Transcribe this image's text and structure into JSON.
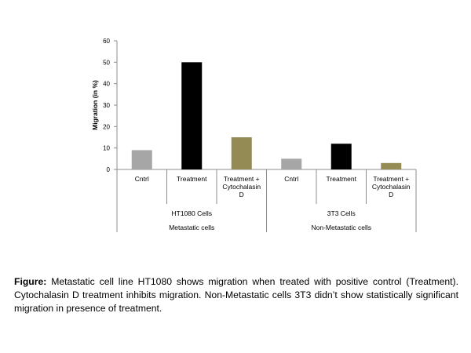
{
  "chart_data": {
    "type": "bar",
    "title": "",
    "xlabel": "",
    "ylabel": "Migration (in %)",
    "ylim": [
      0,
      60
    ],
    "yticks": [
      0,
      10,
      20,
      30,
      40,
      50,
      60
    ],
    "grid": false,
    "legend": "none",
    "bars": [
      {
        "label": [
          "Cntrl"
        ],
        "value": 9,
        "color": "#a6a6a6"
      },
      {
        "label": [
          "Treatment"
        ],
        "value": 50,
        "color": "#000000"
      },
      {
        "label": [
          "Treatment +",
          "Cytochalasin",
          "D"
        ],
        "value": 15,
        "color": "#948a54"
      },
      {
        "label": [
          "Cntrl"
        ],
        "value": 5,
        "color": "#a6a6a6"
      },
      {
        "label": [
          "Treatment"
        ],
        "value": 12,
        "color": "#000000"
      },
      {
        "label": [
          "Treatment +",
          "Cytochalasin",
          "D"
        ],
        "value": 3,
        "color": "#948a54"
      }
    ],
    "groups": [
      {
        "cell_line": "HT1080 Cells",
        "category": "Metastatic cells"
      },
      {
        "cell_line": "3T3 Cells",
        "category": "Non-Metastatic cells"
      }
    ]
  },
  "caption": {
    "label": "Figure:",
    "text": " Metastatic cell line HT1080 shows migration when treated with positive control (Treatment). Cytochalasin D treatment inhibits migration. Non-Metastatic cells 3T3 didn’t show statistically significant migration in presence of treatment."
  }
}
